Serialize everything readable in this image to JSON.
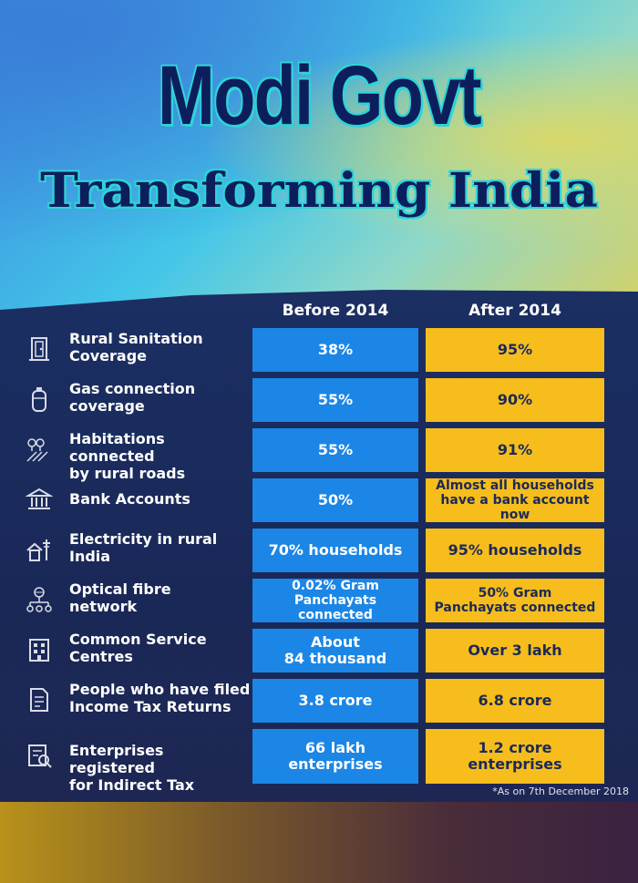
{
  "header": {
    "title_line1": "Modi Govt",
    "title_line2": "Transforming India"
  },
  "columns": {
    "before": "Before 2014",
    "after": "After 2014"
  },
  "rows": [
    {
      "icon": "toilet-door-icon",
      "label_lines": [
        "Rural Sanitation",
        "Coverage"
      ],
      "before": [
        "38%"
      ],
      "after": [
        "95%"
      ]
    },
    {
      "icon": "gas-cylinder-icon",
      "label_lines": [
        "Gas connection",
        "coverage"
      ],
      "before": [
        "55%"
      ],
      "after": [
        "90%"
      ]
    },
    {
      "icon": "rural-road-icon",
      "label_lines": [
        "Habitations connected",
        "by rural roads"
      ],
      "before": [
        "55%"
      ],
      "after": [
        "91%"
      ]
    },
    {
      "icon": "bank-icon",
      "label_lines": [
        "Bank Accounts"
      ],
      "before": [
        "50%"
      ],
      "after": [
        "Almost all households",
        "have a bank account now"
      ]
    },
    {
      "icon": "electricity-house-icon",
      "label_lines": [
        "Electricity in rural",
        "India"
      ],
      "before": [
        "70% households"
      ],
      "after": [
        "95% households"
      ]
    },
    {
      "icon": "network-icon",
      "label_lines": [
        "Optical fibre",
        "network"
      ],
      "before": [
        "0.02% Gram",
        "Panchayats connected"
      ],
      "after": [
        "50% Gram",
        "Panchayats connected"
      ]
    },
    {
      "icon": "building-icon",
      "label_lines": [
        "Common Service",
        "Centres"
      ],
      "before": [
        "About",
        "84 thousand"
      ],
      "after": [
        "Over 3 lakh"
      ]
    },
    {
      "icon": "tax-document-icon",
      "label_lines": [
        "People who have filed",
        "Income Tax Returns"
      ],
      "before": [
        "3.8 crore"
      ],
      "after": [
        "6.8 crore"
      ]
    },
    {
      "icon": "enterprise-document-icon",
      "label_lines": [
        "Enterprises registered",
        "for Indirect Tax"
      ],
      "before": [
        "66 lakh",
        "enterprises"
      ],
      "after": [
        "1.2 crore",
        "enterprises"
      ]
    }
  ],
  "footnote": "*As on 7th December 2018",
  "colors": {
    "before_cell": "#1b86e6",
    "after_cell": "#f6bd1c",
    "panel": "#1b2a57",
    "title": "#0d1e5c"
  }
}
